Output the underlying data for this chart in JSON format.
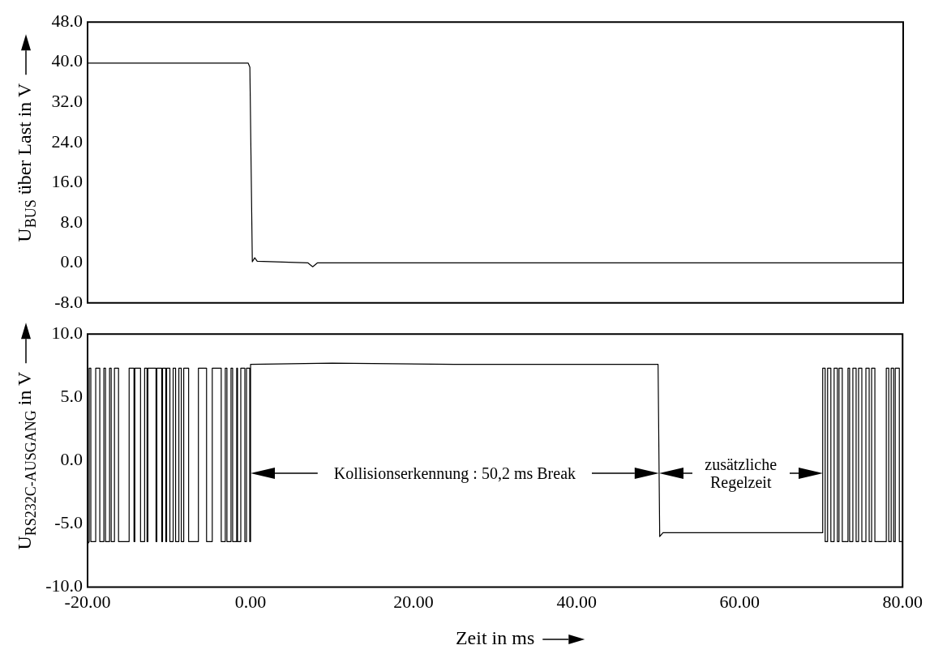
{
  "chart_data": [
    {
      "type": "line",
      "ylabel": "U$_{BUS}$ über Last in V",
      "xlim": [
        -20,
        80
      ],
      "ylim": [
        -8,
        48
      ],
      "yticks": [
        {
          "value": -8,
          "label": "-8.0"
        },
        {
          "value": 0,
          "label": "0.0"
        },
        {
          "value": 8,
          "label": "8.0"
        },
        {
          "value": 16,
          "label": "16.0"
        },
        {
          "value": 24,
          "label": "24.0"
        },
        {
          "value": 32,
          "label": "32.0"
        },
        {
          "value": 40,
          "label": "40.0"
        },
        {
          "value": 48,
          "label": "48.0"
        }
      ],
      "tick_labels": "y",
      "legend": false,
      "series": [
        {
          "color": "#000000",
          "x": [
            -20,
            -10,
            -0.3,
            -0.1,
            0.2,
            0.5,
            0.8,
            7.0,
            7.6,
            8.2,
            30,
            60,
            80
          ],
          "values": [
            39.8,
            39.8,
            39.8,
            39.0,
            0.2,
            1.0,
            0.3,
            0,
            -0.8,
            0,
            0,
            0,
            0
          ]
        }
      ]
    },
    {
      "type": "line",
      "xlabel": "Zeit in ms",
      "ylabel": "U$_{RS232C-AUSGANG}$ in V",
      "xlim": [
        -20,
        80
      ],
      "xticks": [
        {
          "value": -20,
          "label": "-20.00"
        },
        {
          "value": 0,
          "label": "0.00"
        },
        {
          "value": 20,
          "label": "20.00"
        },
        {
          "value": 40,
          "label": "40.00"
        },
        {
          "value": 60,
          "label": "60.00"
        },
        {
          "value": 80,
          "label": "80.00"
        }
      ],
      "ylim": [
        -10,
        10
      ],
      "yticks": [
        {
          "value": -10,
          "label": "-10.0"
        },
        {
          "value": -5,
          "label": "-5.0"
        },
        {
          "value": 0,
          "label": "0.0"
        },
        {
          "value": 5,
          "label": "5.0"
        },
        {
          "value": 10,
          "label": "10.0"
        }
      ],
      "legend": false,
      "annotations": [
        "Kollisionserkennung : 50,2 ms Break",
        "zusätzliche\nRegelzeit"
      ],
      "series": [
        {
          "color": "#000000",
          "x": [
            -20,
            -19.8,
            -19.8,
            -19.6,
            -19.6,
            -19.0,
            -19.0,
            -18.5,
            -18.5,
            -18.0,
            -18.0,
            -17.8,
            -17.8,
            -17.3,
            -17.3,
            -17.1,
            -17.1,
            -16.7,
            -16.7,
            -16.2,
            -16.2,
            -14.9,
            -14.9,
            -14.3,
            -14.3,
            -14.2,
            -14.2,
            -13.5,
            -13.5,
            -13.0,
            -13.0,
            -12.7,
            -12.7,
            -12.6,
            -12.6,
            -11.6,
            -11.6,
            -11.5,
            -11.5,
            -10.9,
            -10.9,
            -10.8,
            -10.8,
            -10.4,
            -10.4,
            -10.3,
            -10.3,
            -9.9,
            -9.9,
            -9.5,
            -9.5,
            -9.2,
            -9.2,
            -8.8,
            -8.8,
            -8.5,
            -8.5,
            -8.2,
            -8.2,
            -7.6,
            -7.6,
            -6.4,
            -6.4,
            -5.4,
            -5.4,
            -4.7,
            -4.7,
            -3.6,
            -3.6,
            -3.1,
            -3.1,
            -2.9,
            -2.9,
            -2.4,
            -2.4,
            -2.2,
            -2.2,
            -1.7,
            -1.7,
            -1.6,
            -1.6,
            -1.2,
            -1.2,
            -0.7,
            -0.7,
            -0.5,
            -0.5,
            -0.1,
            -0.1,
            0.0,
            0.0,
            10,
            25,
            40,
            50.0,
            50.2,
            50.6,
            70.2,
            70.2,
            70.5,
            70.5,
            70.8,
            70.8,
            71.2,
            71.2,
            71.6,
            71.6,
            72.0,
            72.0,
            72.2,
            72.2,
            72.6,
            72.6,
            73.3,
            73.3,
            73.5,
            73.5,
            73.9,
            73.9,
            74.3,
            74.3,
            74.6,
            74.6,
            75.0,
            75.0,
            75.5,
            75.5,
            75.9,
            75.9,
            76.2,
            76.2,
            76.6,
            76.6,
            78.0,
            78.0,
            78.3,
            78.3,
            78.6,
            78.6,
            78.9,
            78.9,
            79.1,
            79.1,
            79.6,
            79.6,
            80
          ],
          "values": [
            -6.6,
            -6.4,
            7.3,
            7.3,
            -6.4,
            -6.4,
            7.3,
            7.3,
            -6.4,
            -6.4,
            7.3,
            7.3,
            -6.4,
            -6.4,
            7.3,
            7.3,
            -6.4,
            -6.4,
            7.3,
            7.3,
            -6.4,
            -6.4,
            7.3,
            7.3,
            -6.4,
            -6.4,
            7.3,
            7.3,
            -6.4,
            -6.4,
            7.3,
            7.3,
            -6.4,
            -6.4,
            7.3,
            7.3,
            -6.4,
            -6.4,
            7.3,
            7.3,
            -6.4,
            -6.4,
            7.3,
            7.3,
            -6.4,
            -6.4,
            7.3,
            7.3,
            -6.4,
            -6.4,
            7.3,
            7.3,
            -6.4,
            -6.4,
            7.3,
            7.3,
            -6.4,
            -6.4,
            7.3,
            7.3,
            -6.4,
            -6.4,
            7.3,
            7.3,
            -6.4,
            -6.4,
            7.3,
            7.3,
            -6.4,
            -6.4,
            7.3,
            7.3,
            -6.4,
            -6.4,
            7.3,
            7.3,
            -6.4,
            -6.4,
            7.3,
            7.3,
            -6.4,
            -6.4,
            7.3,
            7.3,
            -6.4,
            -6.4,
            7.3,
            7.3,
            -6.4,
            -6.4,
            7.6,
            7.7,
            7.6,
            7.6,
            7.6,
            -6.0,
            -5.7,
            -5.7,
            7.3,
            7.3,
            -6.4,
            -6.4,
            7.3,
            7.3,
            -6.4,
            -6.4,
            7.3,
            7.3,
            -6.4,
            -6.4,
            7.3,
            7.3,
            -6.4,
            -6.4,
            7.3,
            7.3,
            -6.4,
            -6.4,
            7.3,
            7.3,
            -6.4,
            -6.4,
            7.3,
            7.3,
            -6.4,
            -6.4,
            7.3,
            7.3,
            -6.4,
            -6.4,
            7.3,
            7.3,
            -6.4,
            -6.4,
            7.3,
            7.3,
            -6.4,
            -6.4,
            7.3,
            7.3,
            -6.4,
            -6.4,
            7.3,
            7.3,
            -6.4,
            -6.4
          ]
        }
      ]
    }
  ]
}
